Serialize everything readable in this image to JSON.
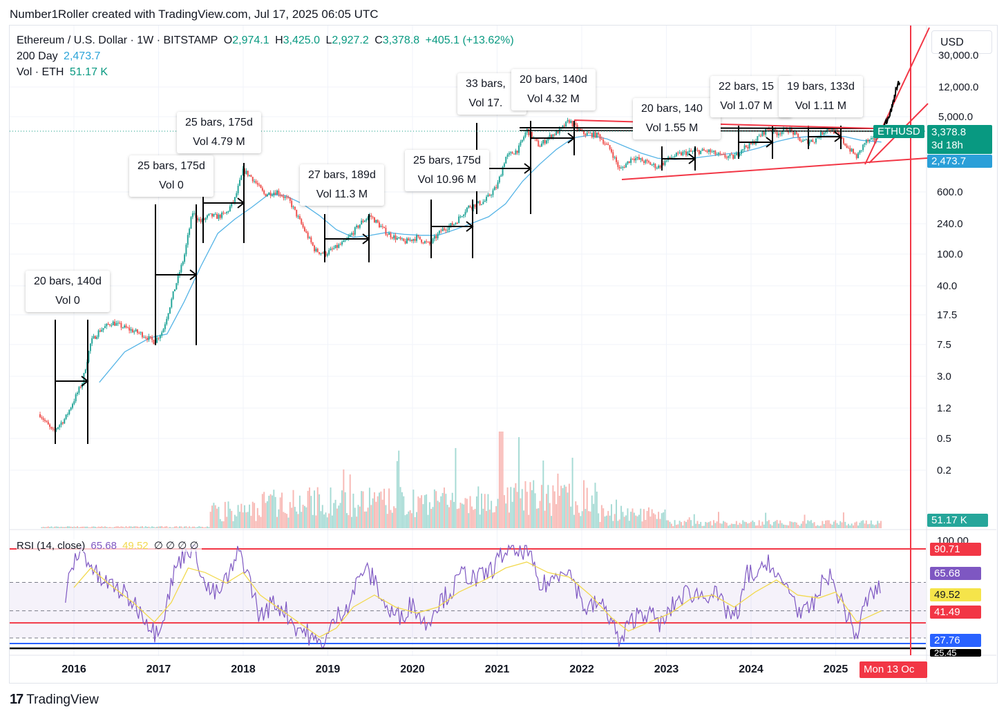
{
  "header": {
    "credit": "Number1Roller created with TradingView.com, Jul 17, 2025 06:05 UTC"
  },
  "footer": {
    "brand": "TradingView",
    "mark": "17"
  },
  "colors": {
    "up": "#26a69a",
    "down": "#ef5350",
    "ma": "#55b4e6",
    "rsi": "#7e57c2",
    "rsi_ma": "#f2d94e",
    "red_line": "#f23645",
    "blue_line": "#2962ff",
    "teal_tag": "#089981"
  },
  "legend": {
    "symbol": "Ethereum / U.S. Dollar · 1W · BITSTAMP",
    "o_label": "O",
    "o_value": "2,974.1",
    "h_label": "H",
    "h_value": "3,425.0",
    "l_label": "L",
    "l_value": "2,927.2",
    "c_label": "C",
    "c_value": "3,378.8",
    "change": "+405.1 (+13.62%)",
    "ma_label": "200 Day",
    "ma_value": "2,473.7",
    "vol_label": "Vol · ETH",
    "vol_value": "51.17 K"
  },
  "currency": "USD",
  "price_axis": {
    "ticks": [
      "30,000.0",
      "12,000.0",
      "5,000.0",
      "600.0",
      "240.0",
      "100.0",
      "40.0",
      "17.5",
      "7.5",
      "3.0",
      "1.2",
      "0.5",
      "0.2"
    ],
    "tags": {
      "symbol": "ETHUSD",
      "last_price": "3,378.8",
      "countdown": "3d 18h",
      "ma_price": "2,473.7",
      "volume": "51.17 K"
    }
  },
  "rsi": {
    "label": "RSI (14, close)",
    "value": "65.68",
    "ma_value": "49.52",
    "extras": "∅ ∅ ∅ ∅",
    "axis_top": "100.00",
    "tags": [
      "90.71",
      "65.68",
      "49.52",
      "41.49",
      "27.76",
      "25.45"
    ]
  },
  "time_axis": {
    "years": [
      "2016",
      "2017",
      "2018",
      "2019",
      "2020",
      "2021",
      "2022",
      "2023",
      "2024",
      "2025"
    ],
    "cursor_label": "Mon 13 Oc"
  },
  "annotations": [
    {
      "bars": "20 bars, 140d",
      "vol": "Vol 0"
    },
    {
      "bars": "25 bars, 175d",
      "vol": "Vol 0"
    },
    {
      "bars": "25 bars, 175d",
      "vol": "Vol 4.79 M"
    },
    {
      "bars": "27 bars, 189d",
      "vol": "Vol 11.3 M"
    },
    {
      "bars": "25 bars, 175d",
      "vol": "Vol 10.96 M"
    },
    {
      "bars": "33 bars, ",
      "vol": "Vol 17."
    },
    {
      "bars": "20 bars, 140d",
      "vol": "Vol 4.32 M"
    },
    {
      "bars": "20 bars, 140",
      "vol": "Vol 1.55 M"
    },
    {
      "bars": "22 bars, 15",
      "vol": "Vol 1.07 M"
    },
    {
      "bars": "19 bars, 133d",
      "vol": "Vol 1.11 M"
    }
  ],
  "chart_data": {
    "type": "candlestick",
    "title": "Ethereum / U.S. Dollar · 1W · BITSTAMP",
    "scale": "log",
    "y_ticks": [
      30000,
      12000,
      5000,
      600,
      240,
      100,
      40,
      17.5,
      7.5,
      3.0,
      1.2,
      0.5,
      0.2
    ],
    "x_categories": [
      "2016",
      "2017",
      "2018",
      "2019",
      "2020",
      "2021",
      "2022",
      "2023",
      "2024",
      "2025"
    ],
    "price_path": [
      [
        2015.6,
        1.0
      ],
      [
        2015.75,
        0.6
      ],
      [
        2015.9,
        0.9
      ],
      [
        2016.1,
        2.5
      ],
      [
        2016.2,
        8
      ],
      [
        2016.3,
        11
      ],
      [
        2016.45,
        14
      ],
      [
        2016.6,
        12
      ],
      [
        2016.8,
        10
      ],
      [
        2016.95,
        8
      ],
      [
        2017.05,
        11
      ],
      [
        2017.2,
        40
      ],
      [
        2017.3,
        90
      ],
      [
        2017.4,
        330
      ],
      [
        2017.5,
        250
      ],
      [
        2017.6,
        300
      ],
      [
        2017.7,
        290
      ],
      [
        2017.8,
        320
      ],
      [
        2017.9,
        480
      ],
      [
        2018.0,
        1100
      ],
      [
        2018.1,
        900
      ],
      [
        2018.25,
        550
      ],
      [
        2018.4,
        600
      ],
      [
        2018.55,
        450
      ],
      [
        2018.7,
        220
      ],
      [
        2018.85,
        110
      ],
      [
        2018.97,
        100
      ],
      [
        2019.2,
        140
      ],
      [
        2019.4,
        250
      ],
      [
        2019.5,
        300
      ],
      [
        2019.7,
        180
      ],
      [
        2019.9,
        140
      ],
      [
        2020.05,
        160
      ],
      [
        2020.2,
        130
      ],
      [
        2020.35,
        200
      ],
      [
        2020.5,
        240
      ],
      [
        2020.65,
        380
      ],
      [
        2020.85,
        450
      ],
      [
        2021.0,
        700
      ],
      [
        2021.1,
        1600
      ],
      [
        2021.25,
        2000
      ],
      [
        2021.35,
        3500
      ],
      [
        2021.5,
        2200
      ],
      [
        2021.6,
        2800
      ],
      [
        2021.75,
        3500
      ],
      [
        2021.85,
        4600
      ],
      [
        2022.0,
        3200
      ],
      [
        2022.2,
        3000
      ],
      [
        2022.35,
        1900
      ],
      [
        2022.45,
        1100
      ],
      [
        2022.6,
        1600
      ],
      [
        2022.75,
        1400
      ],
      [
        2022.9,
        1200
      ],
      [
        2023.05,
        1600
      ],
      [
        2023.2,
        1800
      ],
      [
        2023.35,
        1900
      ],
      [
        2023.5,
        1900
      ],
      [
        2023.65,
        1650
      ],
      [
        2023.8,
        1600
      ],
      [
        2023.9,
        2100
      ],
      [
        2024.0,
        2300
      ],
      [
        2024.2,
        3700
      ],
      [
        2024.3,
        3200
      ],
      [
        2024.45,
        3600
      ],
      [
        2024.6,
        2500
      ],
      [
        2024.75,
        2600
      ],
      [
        2024.9,
        3700
      ],
      [
        2025.0,
        3300
      ],
      [
        2025.1,
        2400
      ],
      [
        2025.25,
        1600
      ],
      [
        2025.35,
        2500
      ],
      [
        2025.45,
        2600
      ],
      [
        2025.54,
        3378.8
      ]
    ],
    "ma200_path": [
      [
        2016.3,
        2.5
      ],
      [
        2016.6,
        6
      ],
      [
        2016.9,
        9
      ],
      [
        2017.1,
        10
      ],
      [
        2017.3,
        25
      ],
      [
        2017.5,
        70
      ],
      [
        2017.7,
        180
      ],
      [
        2017.9,
        270
      ],
      [
        2018.1,
        380
      ],
      [
        2018.3,
        550
      ],
      [
        2018.5,
        530
      ],
      [
        2018.7,
        420
      ],
      [
        2018.9,
        300
      ],
      [
        2019.1,
        200
      ],
      [
        2019.3,
        160
      ],
      [
        2019.5,
        170
      ],
      [
        2019.7,
        185
      ],
      [
        2019.9,
        175
      ],
      [
        2020.1,
        170
      ],
      [
        2020.3,
        170
      ],
      [
        2020.5,
        200
      ],
      [
        2020.7,
        240
      ],
      [
        2020.9,
        290
      ],
      [
        2021.1,
        420
      ],
      [
        2021.3,
        800
      ],
      [
        2021.5,
        1300
      ],
      [
        2021.7,
        2000
      ],
      [
        2021.9,
        2800
      ],
      [
        2022.1,
        3000
      ],
      [
        2022.3,
        2700
      ],
      [
        2022.5,
        2200
      ],
      [
        2022.7,
        1800
      ],
      [
        2022.9,
        1550
      ],
      [
        2023.1,
        1500
      ],
      [
        2023.3,
        1550
      ],
      [
        2023.5,
        1650
      ],
      [
        2023.7,
        1750
      ],
      [
        2023.9,
        1850
      ],
      [
        2024.1,
        2100
      ],
      [
        2024.3,
        2500
      ],
      [
        2024.5,
        2800
      ],
      [
        2024.7,
        2900
      ],
      [
        2024.9,
        2950
      ],
      [
        2025.1,
        2900
      ],
      [
        2025.3,
        2600
      ],
      [
        2025.54,
        2473.7
      ]
    ],
    "projection_path": [
      [
        2025.54,
        3378.8
      ],
      [
        2025.62,
        5000
      ],
      [
        2025.68,
        7500
      ],
      [
        2025.72,
        12000
      ],
      [
        2025.76,
        14500
      ]
    ],
    "rsi_path": [
      [
        2015.9,
        60
      ],
      [
        2016.0,
        82
      ],
      [
        2016.08,
        90
      ],
      [
        2016.15,
        85
      ],
      [
        2016.3,
        70
      ],
      [
        2016.5,
        65
      ],
      [
        2016.7,
        55
      ],
      [
        2016.85,
        45
      ],
      [
        2016.95,
        35
      ],
      [
        2017.05,
        45
      ],
      [
        2017.2,
        78
      ],
      [
        2017.35,
        92
      ],
      [
        2017.45,
        88
      ],
      [
        2017.55,
        65
      ],
      [
        2017.7,
        60
      ],
      [
        2017.8,
        70
      ],
      [
        2017.9,
        80
      ],
      [
        2017.95,
        90
      ],
      [
        2018.05,
        75
      ],
      [
        2018.2,
        45
      ],
      [
        2018.35,
        55
      ],
      [
        2018.5,
        50
      ],
      [
        2018.6,
        40
      ],
      [
        2018.75,
        35
      ],
      [
        2018.87,
        27
      ],
      [
        2018.97,
        30
      ],
      [
        2019.1,
        45
      ],
      [
        2019.25,
        55
      ],
      [
        2019.42,
        78
      ],
      [
        2019.55,
        70
      ],
      [
        2019.7,
        50
      ],
      [
        2019.85,
        45
      ],
      [
        2020.0,
        55
      ],
      [
        2020.15,
        40
      ],
      [
        2020.3,
        55
      ],
      [
        2020.45,
        62
      ],
      [
        2020.6,
        75
      ],
      [
        2020.75,
        70
      ],
      [
        2020.9,
        75
      ],
      [
        2021.0,
        82
      ],
      [
        2021.1,
        90
      ],
      [
        2021.25,
        88
      ],
      [
        2021.35,
        92
      ],
      [
        2021.5,
        65
      ],
      [
        2021.65,
        70
      ],
      [
        2021.8,
        80
      ],
      [
        2021.9,
        70
      ],
      [
        2022.05,
        50
      ],
      [
        2022.2,
        55
      ],
      [
        2022.35,
        45
      ],
      [
        2022.45,
        26
      ],
      [
        2022.55,
        40
      ],
      [
        2022.7,
        50
      ],
      [
        2022.85,
        45
      ],
      [
        2022.95,
        40
      ],
      [
        2023.1,
        55
      ],
      [
        2023.25,
        62
      ],
      [
        2023.4,
        60
      ],
      [
        2023.55,
        62
      ],
      [
        2023.7,
        50
      ],
      [
        2023.85,
        45
      ],
      [
        2023.95,
        75
      ],
      [
        2024.1,
        72
      ],
      [
        2024.2,
        85
      ],
      [
        2024.3,
        70
      ],
      [
        2024.45,
        65
      ],
      [
        2024.6,
        45
      ],
      [
        2024.75,
        55
      ],
      [
        2024.9,
        75
      ],
      [
        2025.05,
        58
      ],
      [
        2025.15,
        45
      ],
      [
        2025.25,
        32
      ],
      [
        2025.35,
        55
      ],
      [
        2025.45,
        62
      ],
      [
        2025.54,
        65.68
      ]
    ],
    "rsi_ma_path": [
      [
        2016.0,
        65
      ],
      [
        2016.2,
        78
      ],
      [
        2016.4,
        68
      ],
      [
        2016.7,
        55
      ],
      [
        2016.95,
        42
      ],
      [
        2017.15,
        55
      ],
      [
        2017.35,
        78
      ],
      [
        2017.55,
        75
      ],
      [
        2017.8,
        68
      ],
      [
        2018.0,
        75
      ],
      [
        2018.2,
        60
      ],
      [
        2018.45,
        50
      ],
      [
        2018.7,
        40
      ],
      [
        2018.9,
        32
      ],
      [
        2019.1,
        38
      ],
      [
        2019.3,
        52
      ],
      [
        2019.55,
        60
      ],
      [
        2019.8,
        52
      ],
      [
        2020.05,
        48
      ],
      [
        2020.3,
        52
      ],
      [
        2020.55,
        62
      ],
      [
        2020.85,
        70
      ],
      [
        2021.1,
        78
      ],
      [
        2021.35,
        82
      ],
      [
        2021.6,
        75
      ],
      [
        2021.85,
        72
      ],
      [
        2022.1,
        60
      ],
      [
        2022.35,
        45
      ],
      [
        2022.55,
        36
      ],
      [
        2022.8,
        42
      ],
      [
        2023.05,
        48
      ],
      [
        2023.3,
        58
      ],
      [
        2023.55,
        60
      ],
      [
        2023.8,
        52
      ],
      [
        2024.05,
        62
      ],
      [
        2024.3,
        70
      ],
      [
        2024.55,
        60
      ],
      [
        2024.8,
        58
      ],
      [
        2025.0,
        62
      ],
      [
        2025.25,
        42
      ],
      [
        2025.54,
        49.52
      ]
    ],
    "rsi_levels": [
      90.71,
      65.68,
      49.52,
      41.49,
      27.76,
      25.45
    ]
  }
}
